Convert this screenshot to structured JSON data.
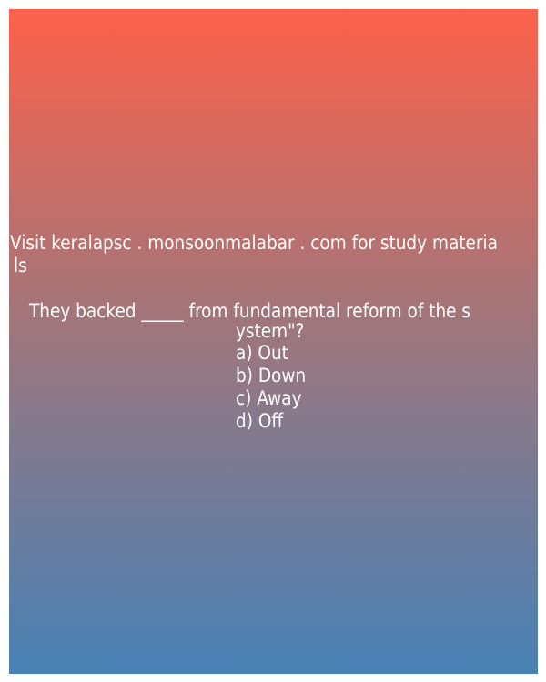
{
  "watermark": {
    "line1": "Visit keralapsc . monsoonmalabar . com for study materia",
    "line2": "ls"
  },
  "question": {
    "line1": "They backed _____ from fundamental reform of the s",
    "line2": "ystem\"?"
  },
  "options": [
    {
      "text": "a) Out"
    },
    {
      "text": "b) Down"
    },
    {
      "text": "c) Away"
    },
    {
      "text": "d) Off"
    }
  ],
  "colors": {
    "gradient_top": "#fe614b",
    "gradient_bottom": "#4781b5",
    "text": "#ffffff"
  }
}
